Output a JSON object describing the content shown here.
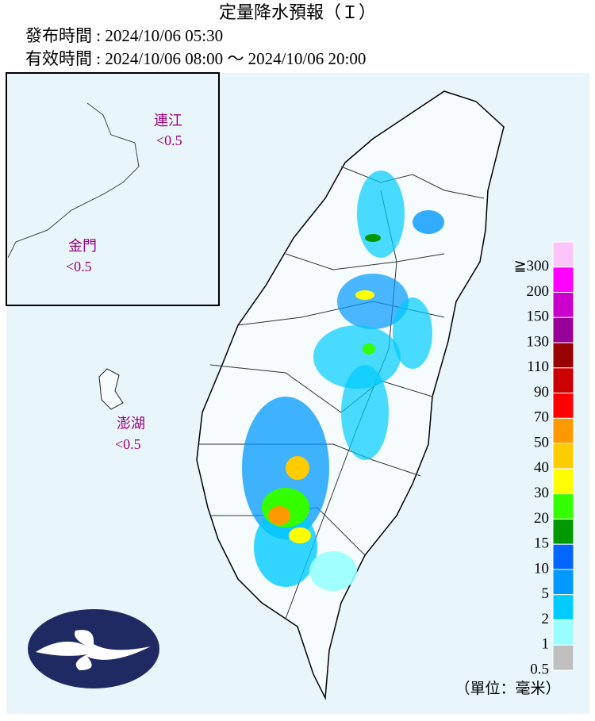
{
  "header": {
    "title": "定量降水預報（Ｉ）",
    "issued": "發布時間 : 2024/10/06 05:30",
    "valid": "有效時間 : 2024/10/06 08:00 ～ 2024/10/06 20:00"
  },
  "islands": [
    {
      "name": "連江",
      "amount": "<0.5"
    },
    {
      "name": "金門",
      "amount": "<0.5"
    },
    {
      "name": "澎湖",
      "amount": "<0.5"
    }
  ],
  "legend": {
    "labels": [
      "≧300",
      "200",
      "150",
      "130",
      "110",
      "90",
      "70",
      "50",
      "40",
      "30",
      "20",
      "15",
      "10",
      "5",
      "2",
      "1",
      "0.5"
    ],
    "colors": [
      "#fcc4f8",
      "#ff00ff",
      "#cc00cc",
      "#990099",
      "#990000",
      "#cc0000",
      "#ff0000",
      "#ff9900",
      "#ffcc00",
      "#ffff00",
      "#33ff00",
      "#009900",
      "#0066ff",
      "#0099ff",
      "#00ccff",
      "#99ffff",
      "#c0c0c0"
    ],
    "unit": "（單位：毫米）"
  }
}
